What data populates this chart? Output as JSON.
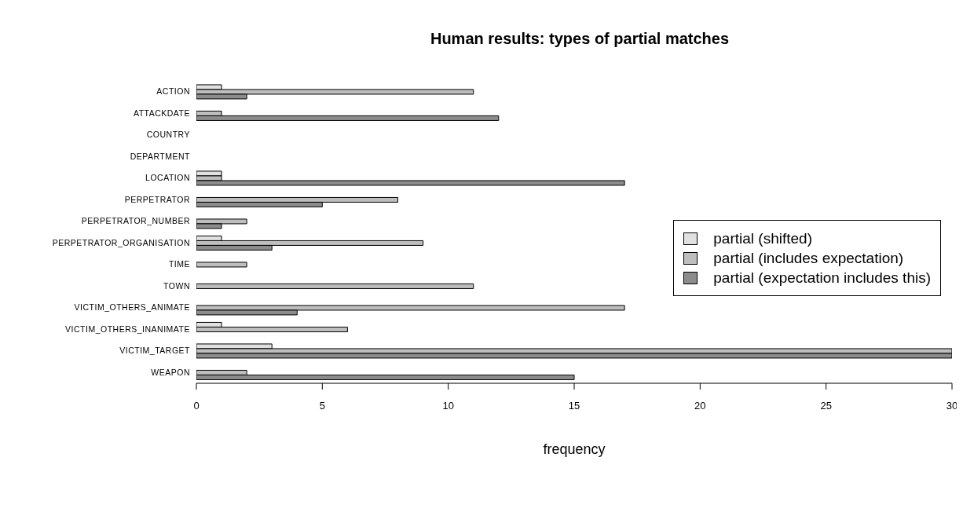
{
  "chart_data": {
    "type": "bar",
    "orientation": "horizontal",
    "title": "Human results: types of partial matches",
    "xlabel": "frequency",
    "categories": [
      "ACTION",
      "ATTACKDATE",
      "COUNTRY",
      "DEPARTMENT",
      "LOCATION",
      "PERPETRATOR",
      "PERPETRATOR_NUMBER",
      "PERPETRATOR_ORGANISATION",
      "TIME",
      "TOWN",
      "VICTIM_OTHERS_ANIMATE",
      "VICTIM_OTHERS_INANIMATE",
      "VICTIM_TARGET",
      "WEAPON"
    ],
    "series": [
      {
        "name": "partial (shifted)",
        "color": "#e0e0e0",
        "values": [
          1,
          0,
          0,
          0,
          1,
          0,
          0,
          1,
          0,
          0,
          0,
          1,
          3,
          0
        ]
      },
      {
        "name": "partial (includes expectation)",
        "color": "#bebebe",
        "values": [
          11,
          1,
          0,
          0,
          1,
          8,
          2,
          9,
          2,
          11,
          17,
          6,
          30,
          2
        ]
      },
      {
        "name": "partial (expectation includes this)",
        "color": "#8c8c8c",
        "values": [
          2,
          12,
          0,
          0,
          17,
          5,
          1,
          3,
          0,
          0,
          4,
          0,
          30,
          15
        ]
      }
    ],
    "xlim": [
      0,
      30
    ],
    "xticks": [
      0,
      5,
      10,
      15,
      20,
      25,
      30
    ],
    "grid": false,
    "legend": "right"
  }
}
